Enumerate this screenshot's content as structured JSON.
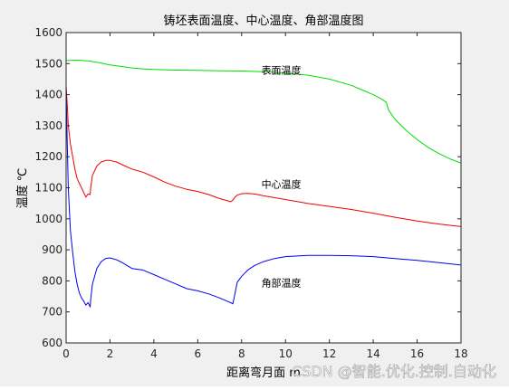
{
  "chart_data": {
    "type": "line",
    "title": "铸坯表面温度、中心温度、角部温度图",
    "xlabel": "距离弯月面 m",
    "ylabel": "温度 ℃",
    "xlim": [
      0,
      18
    ],
    "ylim": [
      600,
      1600
    ],
    "xticks": [
      "0",
      "2",
      "4",
      "6",
      "8",
      "10",
      "12",
      "14",
      "16",
      "18"
    ],
    "yticks": [
      "600",
      "700",
      "800",
      "900",
      "1000",
      "1100",
      "1200",
      "1300",
      "1400",
      "1500",
      "1600"
    ],
    "grid": false,
    "legend": "none",
    "series": [
      {
        "name": "表面温度",
        "color": "#00dd00",
        "x": [
          0,
          0.5,
          1,
          1.5,
          2,
          2.5,
          3,
          3.5,
          4,
          5,
          6,
          7,
          8,
          9,
          10,
          11,
          12,
          13,
          13.5,
          14,
          14.4,
          14.6,
          14.7,
          15,
          15.5,
          16,
          16.5,
          17,
          17.5,
          18
        ],
        "y": [
          1510,
          1511,
          1509,
          1503,
          1496,
          1491,
          1486,
          1483,
          1481,
          1479,
          1478,
          1477,
          1476,
          1474,
          1470,
          1463,
          1450,
          1430,
          1415,
          1400,
          1385,
          1375,
          1350,
          1320,
          1285,
          1255,
          1230,
          1210,
          1193,
          1180
        ]
      },
      {
        "name": "中心温度",
        "color": "#ee0000",
        "x": [
          0,
          0.05,
          0.1,
          0.2,
          0.3,
          0.4,
          0.5,
          0.6,
          0.7,
          0.8,
          0.9,
          1.0,
          1.1,
          1.12,
          1.2,
          1.4,
          1.6,
          1.8,
          2.0,
          2.3,
          2.6,
          3.0,
          3.5,
          4.0,
          4.5,
          5.0,
          5.5,
          6.0,
          6.5,
          7.0,
          7.5,
          7.6,
          7.7,
          7.8,
          8.0,
          8.3,
          8.6,
          9.0,
          10,
          11,
          12,
          13,
          14,
          15,
          16,
          17,
          18
        ],
        "y": [
          1430,
          1370,
          1300,
          1240,
          1200,
          1160,
          1130,
          1115,
          1100,
          1085,
          1070,
          1080,
          1078,
          1100,
          1140,
          1170,
          1183,
          1188,
          1188,
          1183,
          1173,
          1160,
          1150,
          1135,
          1118,
          1105,
          1095,
          1088,
          1078,
          1065,
          1055,
          1060,
          1070,
          1076,
          1081,
          1082,
          1080,
          1074,
          1062,
          1050,
          1040,
          1030,
          1018,
          1005,
          993,
          983,
          975
        ]
      },
      {
        "name": "角部温度",
        "color": "#0000ee",
        "x": [
          0,
          0.05,
          0.1,
          0.2,
          0.3,
          0.4,
          0.5,
          0.6,
          0.7,
          0.8,
          0.9,
          1.0,
          1.1,
          1.12,
          1.2,
          1.4,
          1.6,
          1.8,
          2.0,
          2.3,
          2.6,
          3.0,
          3.5,
          4.0,
          4.5,
          5.0,
          5.5,
          6.0,
          6.5,
          7.0,
          7.5,
          7.6,
          7.7,
          7.8,
          8.0,
          8.3,
          8.6,
          9.0,
          9.5,
          10,
          11,
          12,
          13,
          14,
          15,
          16,
          17,
          18
        ],
        "y": [
          1420,
          1250,
          1100,
          960,
          890,
          830,
          790,
          762,
          745,
          735,
          722,
          730,
          716,
          740,
          790,
          840,
          862,
          872,
          874,
          868,
          857,
          840,
          835,
          820,
          805,
          790,
          775,
          768,
          758,
          745,
          730,
          726,
          760,
          795,
          815,
          836,
          850,
          862,
          872,
          878,
          882,
          882,
          881,
          878,
          872,
          866,
          859,
          851
        ]
      }
    ],
    "annotations": [
      {
        "text": "表面温度",
        "x": 8.9,
        "y": 1467
      },
      {
        "text": "中心温度",
        "x": 8.9,
        "y": 1100
      },
      {
        "text": "角部温度",
        "x": 8.9,
        "y": 782
      }
    ]
  },
  "watermark": "CSDN @智能.优化.控制.自动化"
}
